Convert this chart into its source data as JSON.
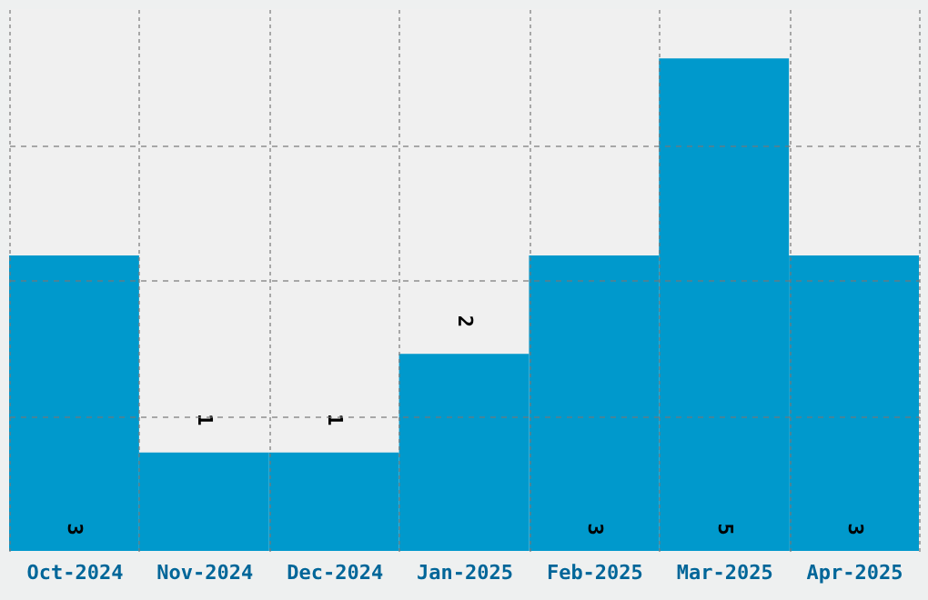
{
  "chart_data": {
    "type": "bar",
    "categories": [
      "Oct-2024",
      "Nov-2024",
      "Dec-2024",
      "Jan-2025",
      "Feb-2025",
      "Mar-2025",
      "Apr-2025"
    ],
    "values": [
      3,
      1,
      1,
      2,
      3,
      5,
      3
    ],
    "color": "#0099cc",
    "data_labels": true,
    "ylim": [
      0,
      5.5
    ],
    "yticks": [
      {
        "value": 1.375,
        "label": null
      },
      {
        "value": 2.75,
        "label": null
      },
      {
        "value": 4.125,
        "label": null
      }
    ],
    "tick_labels": "x",
    "grid": true
  }
}
